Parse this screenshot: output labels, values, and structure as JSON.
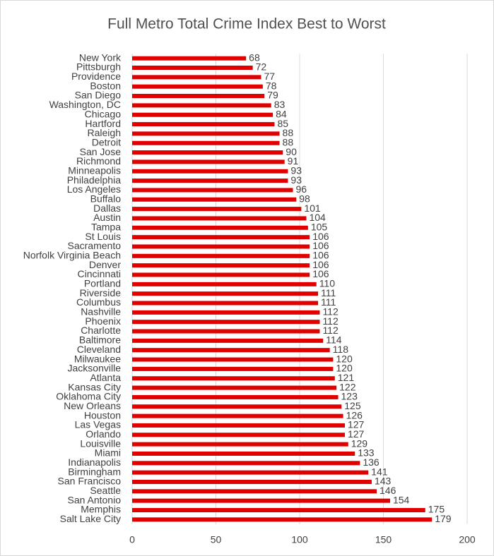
{
  "chart_data": {
    "type": "barh",
    "title": "Full Metro Total Crime Index Best to Worst",
    "categories": [
      "New York",
      "Pittsburgh",
      "Providence",
      "Boston",
      "San Diego",
      "Washington, DC",
      "Chicago",
      "Hartford",
      "Raleigh",
      "Detroit",
      "San Jose",
      "Richmond",
      "Minneapolis",
      "Philadelphia",
      "Los Angeles",
      "Buffalo",
      "Dallas",
      "Austin",
      "Tampa",
      "St Louis",
      "Sacramento",
      "Norfolk Virginia Beach",
      "Denver",
      "Cincinnati",
      "Portland",
      "Riverside",
      "Columbus",
      "Nashville",
      "Phoenix",
      "Charlotte",
      "Baltimore",
      "Cleveland",
      "Milwaukee",
      "Jacksonville",
      "Atlanta",
      "Kansas City",
      "Oklahoma City",
      "New Orleans",
      "Houston",
      "Las Vegas",
      "Orlando",
      "Louisville",
      "Miami",
      "Indianapolis",
      "Birmingham",
      "San Francisco",
      "Seattle",
      "San Antonio",
      "Memphis",
      "Salt Lake City"
    ],
    "values": [
      68,
      72,
      77,
      78,
      79,
      83,
      84,
      85,
      88,
      88,
      90,
      91,
      93,
      93,
      96,
      98,
      101,
      104,
      105,
      106,
      106,
      106,
      106,
      106,
      110,
      111,
      111,
      112,
      112,
      112,
      114,
      118,
      120,
      120,
      121,
      122,
      123,
      125,
      126,
      127,
      127,
      129,
      133,
      136,
      141,
      143,
      146,
      154,
      175,
      179
    ],
    "color": "#e00000",
    "xlim": [
      0,
      200
    ],
    "xticks": [
      0,
      50,
      100,
      150,
      200
    ],
    "grid": true
  }
}
